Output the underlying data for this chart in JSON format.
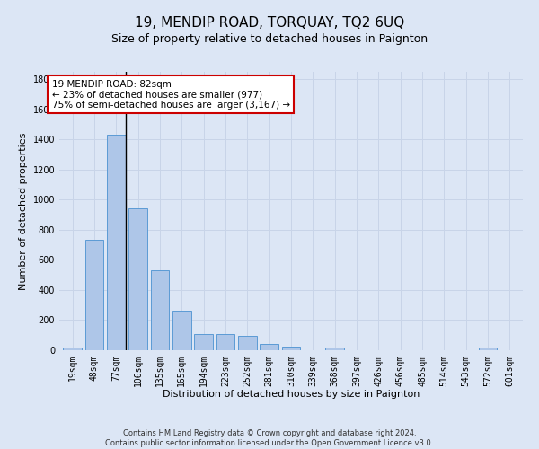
{
  "title": "19, MENDIP ROAD, TORQUAY, TQ2 6UQ",
  "subtitle": "Size of property relative to detached houses in Paignton",
  "xlabel": "Distribution of detached houses by size in Paignton",
  "ylabel": "Number of detached properties",
  "footer": "Contains HM Land Registry data © Crown copyright and database right 2024.\nContains public sector information licensed under the Open Government Licence v3.0.",
  "bar_labels": [
    "19sqm",
    "48sqm",
    "77sqm",
    "106sqm",
    "135sqm",
    "165sqm",
    "194sqm",
    "223sqm",
    "252sqm",
    "281sqm",
    "310sqm",
    "339sqm",
    "368sqm",
    "397sqm",
    "426sqm",
    "456sqm",
    "485sqm",
    "514sqm",
    "543sqm",
    "572sqm",
    "601sqm"
  ],
  "bar_values": [
    20,
    735,
    1430,
    940,
    530,
    265,
    110,
    110,
    95,
    40,
    25,
    0,
    15,
    0,
    0,
    0,
    0,
    0,
    0,
    15,
    0
  ],
  "bar_color": "#aec6e8",
  "bar_edge_color": "#5b9bd5",
  "property_line_index": 2,
  "annotation_text": "19 MENDIP ROAD: 82sqm\n← 23% of detached houses are smaller (977)\n75% of semi-detached houses are larger (3,167) →",
  "annotation_box_facecolor": "#ffffff",
  "annotation_box_edgecolor": "#cc0000",
  "ylim": [
    0,
    1850
  ],
  "yticks": [
    0,
    200,
    400,
    600,
    800,
    1000,
    1200,
    1400,
    1600,
    1800
  ],
  "grid_color": "#c8d4e8",
  "bg_color": "#dce6f5",
  "plot_bg_color": "#dce6f5",
  "title_fontsize": 11,
  "subtitle_fontsize": 9,
  "ylabel_fontsize": 8,
  "xlabel_fontsize": 8,
  "tick_fontsize": 7,
  "annot_fontsize": 7.5,
  "footer_fontsize": 6
}
